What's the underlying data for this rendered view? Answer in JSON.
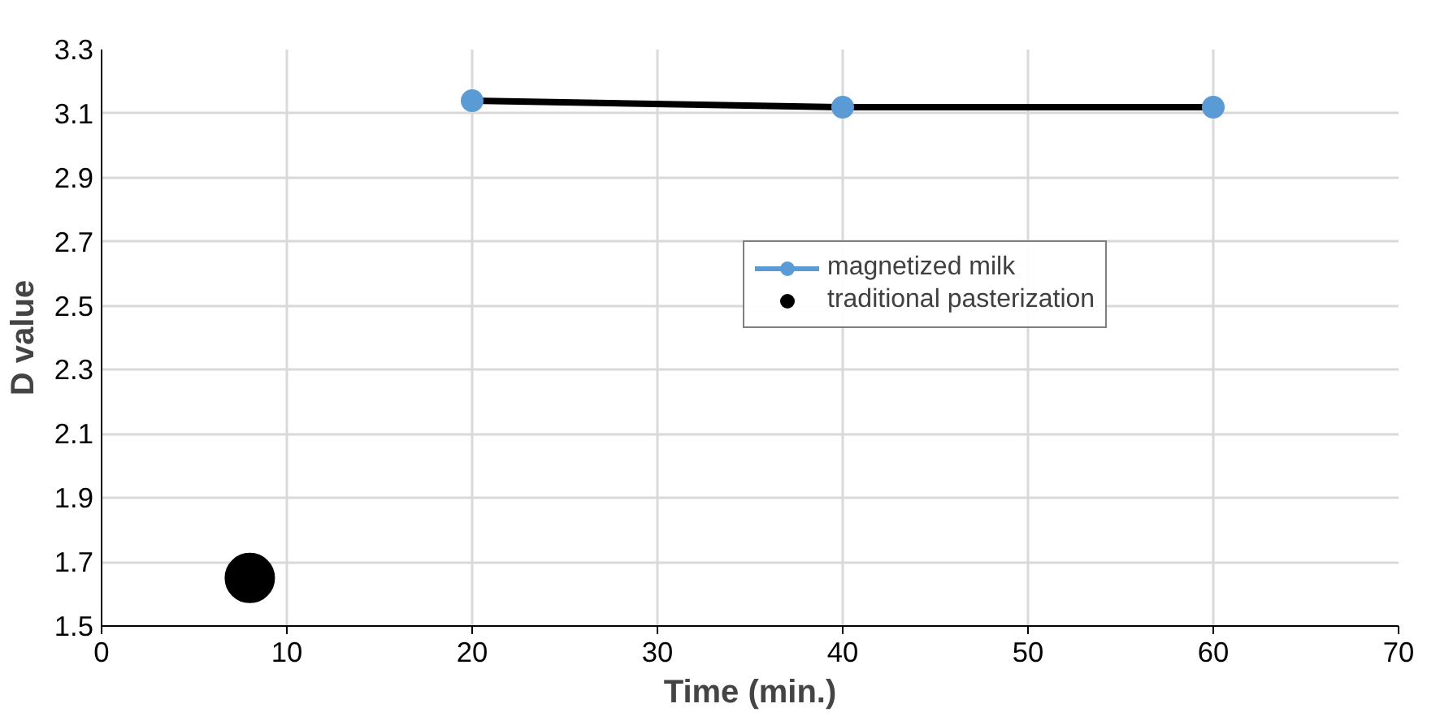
{
  "chart_data": {
    "type": "line",
    "xlabel": "Time (min.)",
    "ylabel": "D value",
    "xlim": [
      0,
      70
    ],
    "xticks": [
      0,
      10,
      20,
      30,
      40,
      50,
      60,
      70
    ],
    "ylim": [
      1.5,
      3.3
    ],
    "yticks": [
      {
        "value": 1.5,
        "label": "1.5"
      },
      {
        "value": 1.7,
        "label": "1.7"
      },
      {
        "value": 1.9,
        "label": "1.9"
      },
      {
        "value": 2.1,
        "label": "2.1"
      },
      {
        "value": 2.3,
        "label": "2.3"
      },
      {
        "value": 2.5,
        "label": "2.5"
      },
      {
        "value": 2.7,
        "label": "2.7"
      },
      {
        "value": 2.9,
        "label": "2.9"
      },
      {
        "value": 3.1,
        "label": "3.1"
      },
      {
        "value": 3.3,
        "label": "3.3"
      }
    ],
    "grid": true,
    "legend": "right",
    "series": [
      {
        "color": "#000000",
        "x": [
          20,
          40,
          60
        ],
        "values": [
          3.14,
          3.12,
          3.12
        ]
      },
      {
        "type": "scatter",
        "name": "magnetized milk",
        "color": "#5b9bd5",
        "marker": "circle",
        "x": [
          20,
          40,
          60
        ],
        "values": [
          3.14,
          3.12,
          3.12
        ]
      },
      {
        "type": "scatter",
        "name": "traditional pasterization",
        "color": "#000000",
        "marker": "circle",
        "x": [
          8
        ],
        "values": [
          1.65
        ]
      }
    ]
  }
}
